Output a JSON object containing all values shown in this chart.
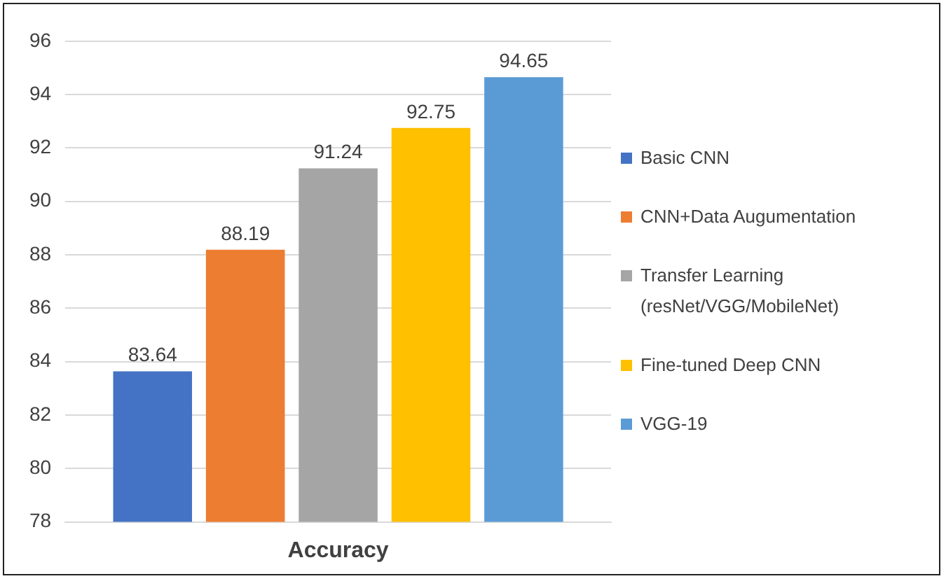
{
  "chart_data": {
    "type": "bar",
    "categories": [
      "Accuracy"
    ],
    "series": [
      {
        "name": "Basic CNN",
        "color": "#4472c4",
        "values": [
          83.64
        ]
      },
      {
        "name": "CNN+Data Augumentation",
        "color": "#ed7d31",
        "values": [
          88.19
        ]
      },
      {
        "name": "Transfer Learning (resNet/VGG/MobileNet)",
        "color": "#a5a5a5",
        "values": [
          91.24
        ]
      },
      {
        "name": "Fine-tuned Deep CNN",
        "color": "#ffc000",
        "values": [
          92.75
        ]
      },
      {
        "name": "VGG-19",
        "color": "#5b9bd5",
        "values": [
          94.65
        ]
      }
    ],
    "ylim": [
      78,
      96
    ],
    "yticks": [
      78,
      80,
      82,
      84,
      86,
      88,
      90,
      92,
      94,
      96
    ],
    "grid": "y",
    "legend": "right",
    "data_labels": true
  }
}
